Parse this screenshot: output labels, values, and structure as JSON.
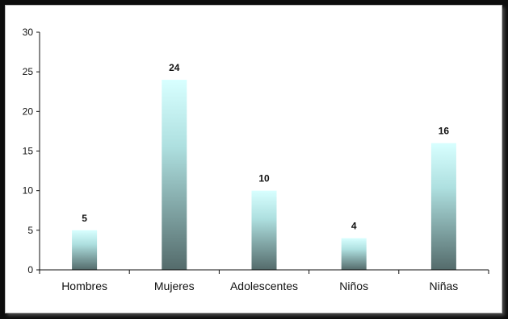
{
  "chart_data": {
    "type": "bar",
    "title": "",
    "xlabel": "",
    "ylabel": "",
    "categories": [
      "Hombres",
      "Mujeres",
      "Adolescentes",
      "Niños",
      "Niñas"
    ],
    "values": [
      5,
      24,
      10,
      4,
      16
    ],
    "data_labels": [
      "5",
      "24",
      "10",
      "4",
      "16"
    ],
    "ylim": [
      0,
      30
    ],
    "yticks": [
      0,
      5,
      10,
      15,
      20,
      25,
      30
    ],
    "ytick_labels": [
      "0",
      "5",
      "10",
      "15",
      "20",
      "25",
      "30"
    ],
    "grid": false,
    "legend": "none",
    "bar_gradient": {
      "top": "#d8ffff",
      "bottom": "#546b6b"
    },
    "axis_color": "#111111"
  }
}
